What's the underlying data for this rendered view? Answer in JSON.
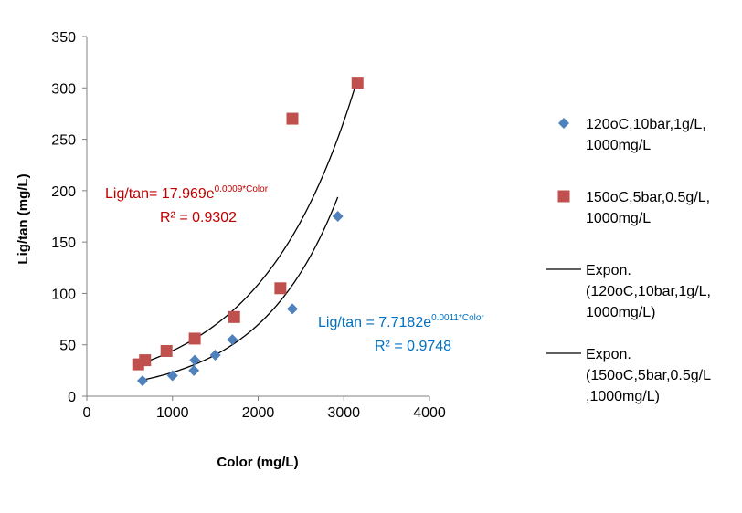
{
  "chart_data": {
    "type": "scatter",
    "title": "",
    "xlabel": "Color (mg/L)",
    "ylabel": "Lig/tan (mg/L)",
    "xlim": [
      0,
      4000
    ],
    "ylim": [
      0,
      350
    ],
    "x_ticks": [
      "0",
      "1000",
      "2000",
      "3000",
      "4000"
    ],
    "y_ticks": [
      "0",
      "50",
      "100",
      "150",
      "200",
      "250",
      "300",
      "350"
    ],
    "grid": false,
    "legend_position": "right",
    "series": [
      {
        "name": "120oC,10bar,1g/L, 1000mg/L",
        "legend_lines": [
          "120oC,10bar,1g/L,",
          "1000mg/L"
        ],
        "marker": "diamond",
        "color": "#4f81bd",
        "x": [
          650,
          1000,
          1250,
          1260,
          1500,
          1700,
          2400,
          2930
        ],
        "y": [
          15,
          20,
          25,
          35,
          40,
          55,
          85,
          175
        ]
      },
      {
        "name": "150oC,5bar,0.5g/L, 1000mg/L",
        "legend_lines": [
          "150oC,5bar,0.5g/L,",
          "1000mg/L"
        ],
        "marker": "square",
        "color": "#c0504d",
        "x": [
          600,
          680,
          930,
          1260,
          1720,
          2260,
          2400,
          3160
        ],
        "y": [
          31,
          35,
          44,
          56,
          77,
          105,
          270,
          305
        ]
      }
    ],
    "trendlines": [
      {
        "name": "Expon. (120oC,10bar,1g/L, 1000mg/L)",
        "legend_lines": [
          "Expon.",
          "(120oC,10bar,1g/L,",
          "1000mg/L)"
        ],
        "a": 7.7182,
        "b": 0.0011,
        "x_range": [
          650,
          2930
        ],
        "color": "#000000",
        "equation": {
          "prefix": "Lig/tan = 7.7182e",
          "exponent": "0.0011*Color",
          "r2": "R² = 0.9748",
          "color": "#0070c0"
        }
      },
      {
        "name": "Expon. (150oC,5bar,0.5g/L, 1000mg/L)",
        "legend_lines": [
          "Expon.",
          "(150oC,5bar,0.5g/L",
          ",1000mg/L)"
        ],
        "a": 17.969,
        "b": 0.0009,
        "x_range": [
          600,
          3160
        ],
        "color": "#000000",
        "equation": {
          "prefix": "Lig/tan= 17.969e",
          "exponent": "0.0009*Color",
          "r2": "R² = 0.9302",
          "color": "#c00000"
        }
      }
    ]
  }
}
